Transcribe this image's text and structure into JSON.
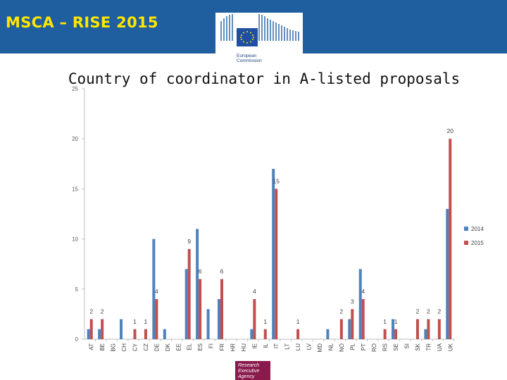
{
  "header": {
    "title": "MSCA – RISE 2015",
    "logo_text": [
      "European",
      "Commission"
    ]
  },
  "slide_title": "Country of coordinator in A-listed proposals",
  "footer": {
    "agency_lines": [
      "Research",
      "Executive",
      "Agency"
    ]
  },
  "colors": {
    "header_bg": "#1f5fa0",
    "title_yellow": "#ffe600",
    "series_2014": "#4f81bd",
    "series_2015": "#c0504d",
    "agency_bg": "#8a1a4b"
  },
  "chart_data": {
    "type": "bar",
    "title": "",
    "xlabel": "",
    "ylabel": "",
    "ylim": [
      0,
      25
    ],
    "yticks": [
      0,
      5,
      10,
      15,
      20,
      25
    ],
    "grid": false,
    "legend": "right",
    "categories": [
      "AT",
      "BE",
      "BG",
      "CH",
      "CY",
      "CZ",
      "DE",
      "DK",
      "EE",
      "EL",
      "ES",
      "FI",
      "FR",
      "HR",
      "HU",
      "IE",
      "IL",
      "IT",
      "LT",
      "LU",
      "LV",
      "MD",
      "NL",
      "NO",
      "PL",
      "PT",
      "RO",
      "RS",
      "SE",
      "SI",
      "SK",
      "TR",
      "UA",
      "UK"
    ],
    "series": [
      {
        "name": "2014",
        "color": "#4f81bd",
        "values": [
          1,
          1,
          0,
          2,
          0,
          0,
          10,
          1,
          0,
          7,
          11,
          3,
          4,
          0,
          0,
          1,
          0,
          17,
          0,
          0,
          0,
          0,
          1,
          0,
          2,
          7,
          0,
          0,
          2,
          0,
          0,
          1,
          0,
          13
        ]
      },
      {
        "name": "2015",
        "color": "#c0504d",
        "values": [
          2,
          2,
          0,
          0,
          1,
          1,
          4,
          0,
          0,
          9,
          6,
          0,
          6,
          0,
          0,
          4,
          1,
          15,
          0,
          1,
          0,
          0,
          0,
          2,
          3,
          4,
          0,
          1,
          1,
          0,
          2,
          2,
          2,
          20
        ]
      }
    ],
    "data_labels_2015": [
      2,
      2,
      null,
      null,
      1,
      1,
      4,
      null,
      null,
      9,
      6,
      null,
      6,
      null,
      null,
      4,
      1,
      15,
      null,
      1,
      null,
      null,
      null,
      2,
      3,
      4,
      null,
      1,
      1,
      null,
      2,
      2,
      2,
      20
    ]
  }
}
